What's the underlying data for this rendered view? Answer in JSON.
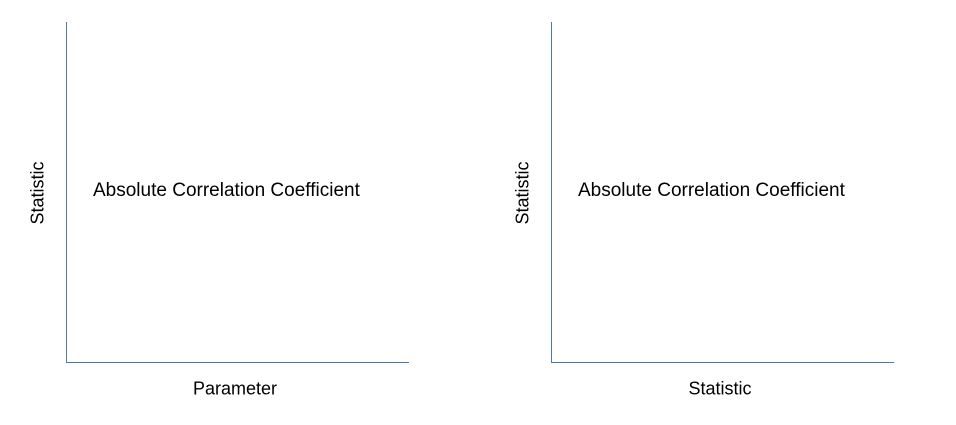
{
  "panels": [
    {
      "y_label": "Statistic",
      "x_label": "Parameter",
      "inner_text": "Absolute Correlation Coefficient"
    },
    {
      "y_label": "Statistic",
      "x_label": "Statistic",
      "inner_text": "Absolute Correlation Coefficient"
    }
  ],
  "colors": {
    "axis": "#4a7bb0",
    "text": "#000000",
    "background": "#ffffff"
  }
}
